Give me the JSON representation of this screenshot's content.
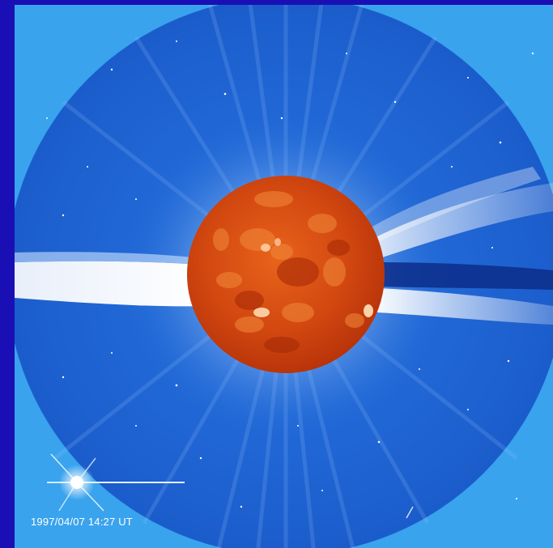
{
  "image": {
    "timestamp": "1997/04/07 14:27 UT"
  },
  "colors": {
    "border": "#1a0fb5",
    "background": "#39a3ee",
    "occulter_disk": "#1b5fce",
    "corona": "#ffffff",
    "sun": "#d94a10"
  }
}
